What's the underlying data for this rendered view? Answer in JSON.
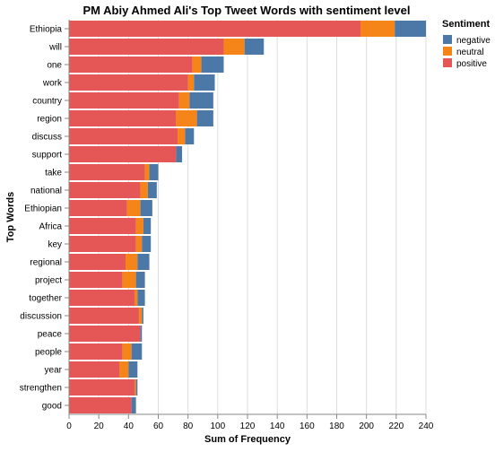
{
  "chart_data": {
    "type": "bar",
    "orientation": "horizontal",
    "stacked": true,
    "title": "PM Abiy Ahmed Ali's Top Tweet Words with sentiment level",
    "xlabel": "Sum of Frequency",
    "ylabel": "Top Words",
    "xlim": [
      0,
      240
    ],
    "xticks": [
      0,
      20,
      40,
      60,
      80,
      100,
      120,
      140,
      160,
      180,
      200,
      220,
      240
    ],
    "grid": true,
    "legend": {
      "title": "Sentiment",
      "position": "top-right"
    },
    "categories": [
      "Ethiopia",
      "will",
      "one",
      "work",
      "country",
      "region",
      "discuss",
      "support",
      "take",
      "national",
      "Ethiopian",
      "Africa",
      "key",
      "regional",
      "project",
      "together",
      "discussion",
      "peace",
      "people",
      "year",
      "strengthen",
      "good"
    ],
    "series": [
      {
        "name": "positive",
        "color": "#e45756",
        "values": [
          196,
          104,
          83,
          80,
          74,
          72,
          73,
          72,
          51,
          48,
          39,
          45,
          45,
          38,
          36,
          44,
          47,
          48,
          36,
          34,
          44,
          42
        ]
      },
      {
        "name": "neutral",
        "color": "#f58518",
        "values": [
          23,
          14,
          6,
          4,
          7,
          14,
          5,
          0,
          3,
          5,
          9,
          5,
          4,
          8,
          9,
          2,
          2,
          0,
          6,
          6,
          1,
          0
        ]
      },
      {
        "name": "negative",
        "color": "#4c78a8",
        "values": [
          21,
          13,
          15,
          14,
          16,
          11,
          6,
          4,
          6,
          6,
          8,
          5,
          6,
          8,
          6,
          5,
          1,
          1,
          7,
          6,
          1,
          3
        ]
      }
    ]
  }
}
